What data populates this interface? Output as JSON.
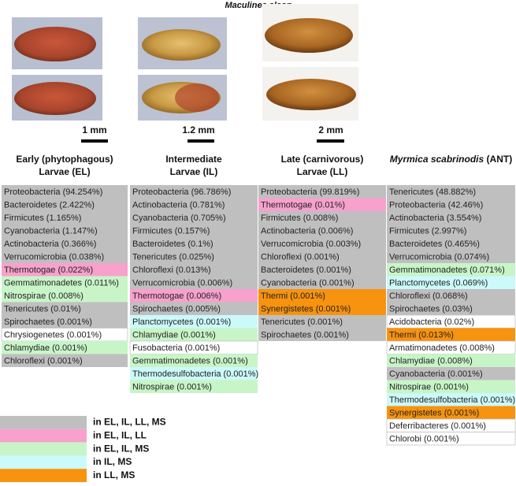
{
  "figure_title": "Maculinea alcon",
  "scale_bars": [
    "1 mm",
    "1.2 mm",
    "2 mm"
  ],
  "legend": [
    {
      "color": "#bfbfbf",
      "label": "in EL, IL, LL, MS"
    },
    {
      "color": "#f7a1cc",
      "label": "in EL, IL, LL"
    },
    {
      "color": "#c8f5c8",
      "label": "in EL, IL, MS"
    },
    {
      "color": "#ccf9f9",
      "label": "in IL, MS"
    },
    {
      "color": "#f7930f",
      "label": "in LL, MS"
    }
  ],
  "columns": [
    {
      "title_lines": [
        "Early (phytophagous)",
        "Larvae (EL)"
      ],
      "items": [
        {
          "label": "Proteobacteria (94.254%)",
          "group": 0
        },
        {
          "label": "Bacteroidetes (2.422%)",
          "group": 0
        },
        {
          "label": "Firmicutes (1.165%)",
          "group": 0
        },
        {
          "label": "Cyanobacteria (1.147%)",
          "group": 0
        },
        {
          "label": "Actinobacteria (0.366%)",
          "group": 0
        },
        {
          "label": "Verrucomicrobia (0.038%)",
          "group": 0
        },
        {
          "label": "Thermotogae (0.022%)",
          "group": 1
        },
        {
          "label": "Gemmatimonadetes (0.011%)",
          "group": 2
        },
        {
          "label": "Nitrospirae (0.008%)",
          "group": 2
        },
        {
          "label": "Tenericutes (0.01%)",
          "group": 0
        },
        {
          "label": "Spirochaetes (0.001%)",
          "group": 0
        },
        {
          "label": "Chrysiogenetes (0.001%)",
          "group": null
        },
        {
          "label": "Chlamydiae (0.001%)",
          "group": 2
        },
        {
          "label": "Chloroflexi (0.001%)",
          "group": 0
        }
      ]
    },
    {
      "title_lines": [
        "Intermediate",
        "Larvae (IL)"
      ],
      "items": [
        {
          "label": "Proteobacteria (96.786%)",
          "group": 0
        },
        {
          "label": "Actinobacteria (0.781%)",
          "group": 0
        },
        {
          "label": "Cyanobacteria (0.705%)",
          "group": 0
        },
        {
          "label": "Firmicutes (0.157%)",
          "group": 0
        },
        {
          "label": "Bacteroidetes (0.1%)",
          "group": 0
        },
        {
          "label": "Tenericutes (0.025%)",
          "group": 0
        },
        {
          "label": "Chloroflexi (0.013%)",
          "group": 0
        },
        {
          "label": "Verrucomicrobia (0.006%)",
          "group": 0
        },
        {
          "label": "Thermotogae (0.006%)",
          "group": 1
        },
        {
          "label": "Spirochaetes (0.005%)",
          "group": 0
        },
        {
          "label": "Planctomycetes (0.001%)",
          "group": 3
        },
        {
          "label": "Chlamydiae (0.001%)",
          "group": 2
        },
        {
          "label": "Fusobacteria (0.001%)",
          "group": null
        },
        {
          "label": "Gemmatimonadetes (0.001%)",
          "group": 2
        },
        {
          "label": "Thermodesulfobacteria (0.001%)",
          "group": 3
        },
        {
          "label": "Nitrospirae (0.001%)",
          "group": 2
        }
      ]
    },
    {
      "title_lines": [
        "Late (carnivorous)",
        "Larvae (LL)"
      ],
      "items": [
        {
          "label": "Proteobacteria (99.819%)",
          "group": 0
        },
        {
          "label": "Thermotogae (0.01%)",
          "group": 1
        },
        {
          "label": "Firmicutes (0.008%)",
          "group": 0
        },
        {
          "label": "Actinobacteria (0.006%)",
          "group": 0
        },
        {
          "label": "Verrucomicrobia (0.003%)",
          "group": 0
        },
        {
          "label": "Chloroflexi (0.001%)",
          "group": 0
        },
        {
          "label": "Bacteroidetes (0.001%)",
          "group": 0
        },
        {
          "label": "Cyanobacteria (0.001%)",
          "group": 0
        },
        {
          "label": "Thermi (0.001%)",
          "group": 4
        },
        {
          "label": "Synergistetes (0.001%)",
          "group": 4
        },
        {
          "label": "Tenericutes (0.001%)",
          "group": 0
        },
        {
          "label": "Spirochaetes (0.001%)",
          "group": 0
        }
      ]
    },
    {
      "title_italic": "Myrmica scabrinodis",
      "title_rest": "(ANT)",
      "items": [
        {
          "label": "Tenericutes (48.882%)",
          "group": 0
        },
        {
          "label": "Proteobacteria (42.46%)",
          "group": 0
        },
        {
          "label": "Actinobacteria (3.554%)",
          "group": 0
        },
        {
          "label": "Firmicutes (2.997%)",
          "group": 0
        },
        {
          "label": "Bacteroidetes (0.465%)",
          "group": 0
        },
        {
          "label": "Verrucomicrobia (0.074%)",
          "group": 0
        },
        {
          "label": "Gemmatimonadetes (0.071%)",
          "group": 2
        },
        {
          "label": "Planctomycetes (0.069%)",
          "group": 3
        },
        {
          "label": "Chloroflexi (0.068%)",
          "group": 0
        },
        {
          "label": "Spirochaetes (0.03%)",
          "group": 0
        },
        {
          "label": "Acidobacteria (0.02%)",
          "group": null
        },
        {
          "label": "Thermi (0.013%)",
          "group": 4
        },
        {
          "label": "Armatimonadetes (0.008%)",
          "group": null
        },
        {
          "label": "Chlamydiae (0.008%)",
          "group": 2
        },
        {
          "label": "Cyanobacteria (0.001%)",
          "group": 0
        },
        {
          "label": "Nitrospirae (0.001%)",
          "group": 2
        },
        {
          "label": "Thermodesulfobacteria (0.001%)",
          "group": 3
        },
        {
          "label": "Synergistetes (0.001%)",
          "group": 4
        },
        {
          "label": "Deferribacteres (0.001%)",
          "group": null
        },
        {
          "label": "Chlorobi (0.001%)",
          "group": null
        }
      ]
    }
  ]
}
